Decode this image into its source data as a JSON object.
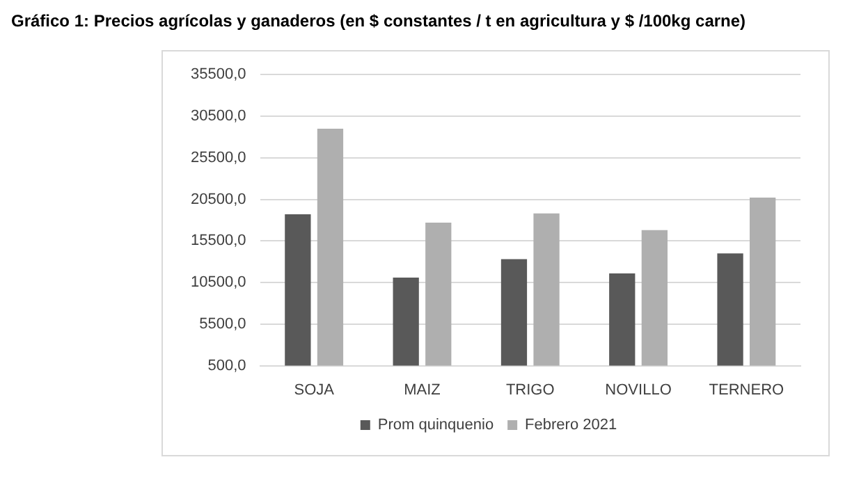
{
  "chart_data": {
    "type": "bar",
    "title": "Gráfico 1: Precios agrícolas y ganaderos  (en $ constantes / t en agricultura y $ /100kg carne)",
    "categories": [
      "SOJA",
      "MAIZ",
      "TRIGO",
      "NOVILLO",
      "TERNERO"
    ],
    "series": [
      {
        "name": "Prom quinquenio",
        "color": "#595959",
        "values": [
          18700,
          11100,
          13300,
          11600,
          14000
        ]
      },
      {
        "name": "Febrero 2021",
        "color": "#afafaf",
        "values": [
          29000,
          17700,
          18800,
          16800,
          20700
        ]
      }
    ],
    "ylim": [
      500,
      35500
    ],
    "yticks": [
      {
        "value": 500,
        "label": "500,0"
      },
      {
        "value": 5500,
        "label": "5500,0"
      },
      {
        "value": 10500,
        "label": "10500,0"
      },
      {
        "value": 15500,
        "label": "15500,0"
      },
      {
        "value": 20500,
        "label": "20500,0"
      },
      {
        "value": 25500,
        "label": "25500,0"
      },
      {
        "value": 30500,
        "label": "30500,0"
      },
      {
        "value": 35500,
        "label": "35500,0"
      }
    ],
    "grid": "y",
    "legend": "bottom"
  }
}
